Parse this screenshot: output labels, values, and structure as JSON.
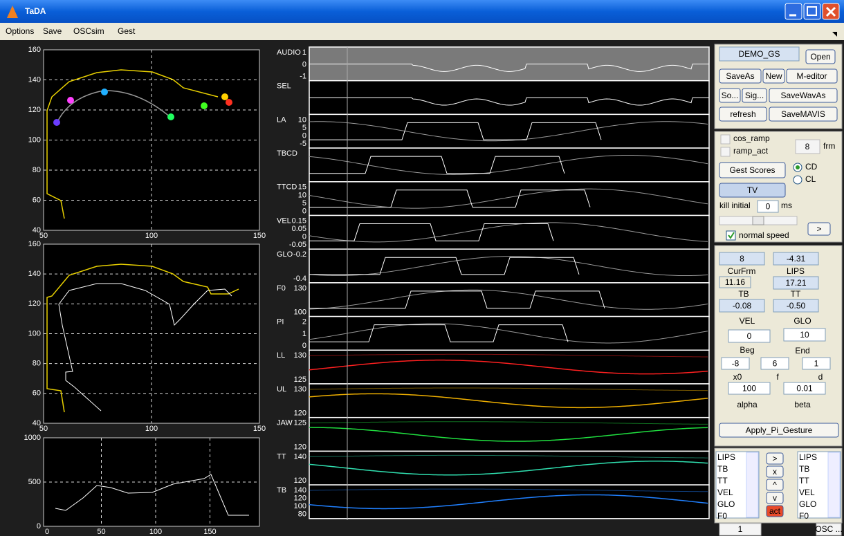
{
  "window": {
    "title": "TaDA"
  },
  "menu": [
    "Options",
    "Save",
    "OSCsim",
    "Gest"
  ],
  "plots": [
    {
      "yticks": [
        "160",
        "140",
        "120",
        "100",
        "80",
        "60",
        "40"
      ],
      "xticks": [
        "50",
        "100",
        "150"
      ]
    },
    {
      "yticks": [
        "160",
        "140",
        "120",
        "100",
        "80",
        "60",
        "40"
      ],
      "xticks": [
        "50",
        "100",
        "150"
      ]
    },
    {
      "yticks": [
        "1000",
        "500",
        "0"
      ],
      "xticks": [
        "0",
        "50",
        "100",
        "150"
      ]
    }
  ],
  "tracks": [
    {
      "label": "AUDIO",
      "ticks": [
        "1",
        "0",
        "-1"
      ]
    },
    {
      "label": "SEL",
      "ticks": []
    },
    {
      "label": "LA",
      "ticks": [
        "10",
        "5",
        "0",
        "-5"
      ]
    },
    {
      "label": "TBCD",
      "ticks": []
    },
    {
      "label": "TTCD",
      "ticks": [
        "15",
        "10",
        "5",
        "0"
      ]
    },
    {
      "label": "VEL",
      "ticks": [
        "0.15",
        "0.05",
        "0",
        "-0.05"
      ]
    },
    {
      "label": "GLO",
      "ticks": [
        "-0.2",
        "-0.4"
      ]
    },
    {
      "label": "F0",
      "ticks": [
        "130",
        "100"
      ]
    },
    {
      "label": "PI",
      "ticks": [
        "2",
        "1",
        "0"
      ]
    },
    {
      "label": "LL",
      "ticks": [
        "130",
        "125"
      ]
    },
    {
      "label": "UL",
      "ticks": [
        "130",
        "120"
      ]
    },
    {
      "label": "JAW",
      "ticks": [
        "125",
        "120"
      ]
    },
    {
      "label": "TT",
      "ticks": [
        "140",
        "120"
      ]
    },
    {
      "label": "TB",
      "ticks": [
        "140",
        "120",
        "100",
        "80"
      ]
    }
  ],
  "controls": {
    "file_name": "DEMO_GS",
    "open": "Open",
    "save_as": "SaveAs",
    "new": "New",
    "m_editor": "M-editor",
    "so": "So...",
    "sig": "Sig...",
    "save_wav_as": "SaveWavAs",
    "refresh": "refresh",
    "save_mavis": "SaveMAVIS",
    "cos_ramp": "cos_ramp",
    "ramp_act": "ramp_act",
    "frames": "8",
    "frm": "frm",
    "gest_scores": "Gest Scores",
    "cd": "CD",
    "cl": "CL",
    "tv": "TV",
    "kill_initial": "kill initial",
    "kill_value": "0",
    "ms": "ms",
    "play": ">",
    "normal_speed": "normal speed"
  },
  "values_panel": {
    "cur_frm_value": "8",
    "lips_value": "-4.31",
    "cur_frm": "CurFrm",
    "lips": "LIPS",
    "tb_value": "11.16",
    "tt_value": "17.21",
    "tb": "TB",
    "tt": "TT",
    "vel_value": "-0.08",
    "glo_value": "-0.50",
    "vel": "VEL",
    "glo": "GLO",
    "beg_value": "0",
    "end_value": "10",
    "beg": "Beg",
    "end": "End",
    "x0_value": "-8",
    "f_value": "6",
    "d_value": "1",
    "x0": "x0",
    "f": "f",
    "d": "d",
    "alpha_value": "100",
    "beta_value": "0.01",
    "alpha": "alpha",
    "beta": "beta",
    "apply": "Apply_Pi_Gesture"
  },
  "lists": {
    "left": [
      "LIPS",
      "TB",
      "TT",
      "VEL",
      "GLO",
      "F0"
    ],
    "right": [
      "LIPS",
      "TB",
      "TT",
      "VEL",
      "GLO",
      "F0"
    ],
    "buttons": [
      ">",
      "x",
      "^",
      "v",
      "act"
    ],
    "bottom_left": "1",
    "bottom_right": "OSC ..."
  }
}
